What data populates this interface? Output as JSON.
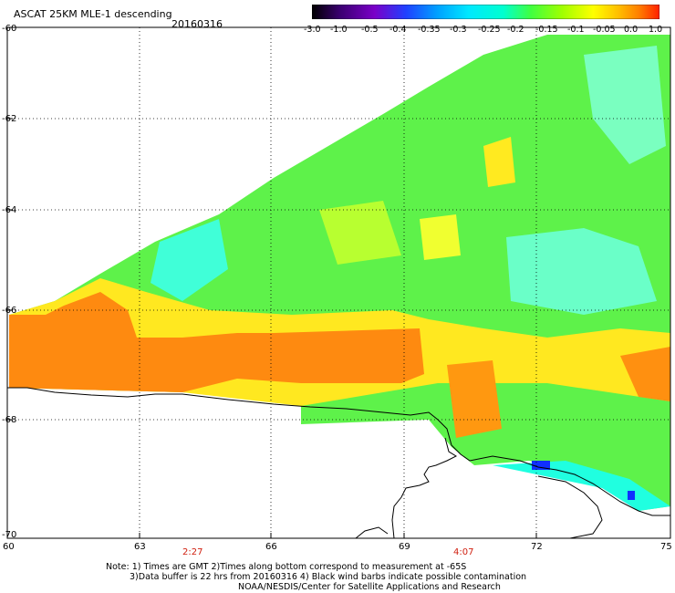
{
  "header": {
    "title": "ASCAT 25KM MLE-1 descending",
    "date": "20160316"
  },
  "colorbar": {
    "labels": [
      "-3.0",
      "-1.0",
      "-0.5",
      "-0.4",
      "-0.35",
      "-0.3",
      "-0.25",
      "-0.2",
      "-0.15",
      "-0.1",
      "-0.05",
      "0.0",
      "1.0"
    ],
    "colors": [
      "#000000",
      "#3a0070",
      "#7a00c8",
      "#2040ff",
      "#00a0ff",
      "#00e8ff",
      "#00ffd0",
      "#40ff40",
      "#a0ff00",
      "#ffff00",
      "#ffc000",
      "#ff8000",
      "#ff2000"
    ]
  },
  "axes": {
    "lat_labels": [
      "-60",
      "-62",
      "-64",
      "-66",
      "-68",
      "-70"
    ],
    "lon_labels": [
      "60",
      "63",
      "66",
      "69",
      "72",
      "75"
    ],
    "times": [
      "2:27",
      "4:07"
    ]
  },
  "notes": {
    "line1": "Note: 1) Times are GMT 2)Times along bottom correspond to measurement at -65S",
    "line2": "3)Data buffer is 22 hrs from 20160316 4) Black wind barbs indicate possible contamination",
    "line3": "NOAA/NESDIS/Center for Satellite Applications and Research"
  }
}
